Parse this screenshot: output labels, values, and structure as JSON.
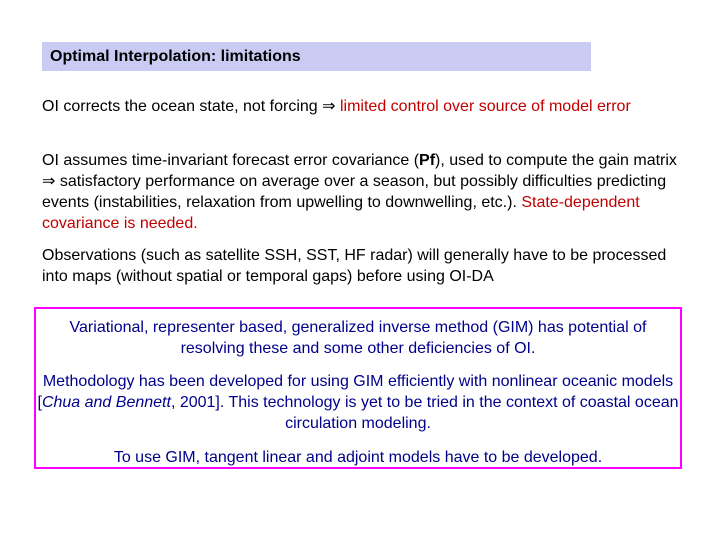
{
  "title": "Optimal Interpolation: limitations",
  "colors": {
    "title_bar_bg": "#c9cbf3",
    "highlight_red": "#c00000",
    "box_border": "#ff00ff",
    "box_text": "#00008b"
  },
  "paragraphs": [
    {
      "text_a": "OI corrects the ocean state, not forcing ",
      "arrow": "⇒",
      "text_red": " limited control over source of model error"
    },
    {
      "text_a": "OI assumes time-invariant forecast error covariance (",
      "pf": "Pf",
      "text_b": "), used to compute the gain matrix ",
      "arrow": "⇒",
      "text_c": " satisfactory performance on average over a season, but possibly difficulties predicting events (instabilities, relaxation from upwelling to downwelling, etc.).   ",
      "text_red": "State-dependent covariance is needed."
    },
    {
      "text_a": "Observations (such as satellite SSH, SST, HF radar) will generally have to be processed into maps (without spatial or temporal gaps) before using OI-DA"
    }
  ],
  "gim_box": {
    "para1": "Variational, representer based, generalized inverse method (GIM) has potential of resolving these and some other deficiencies of OI.",
    "para2_a": "Methodology has been developed for using GIM efficiently with nonlinear oceanic models [",
    "para2_cite": "Chua and Bennett",
    "para2_b": ", 2001]. This technology is yet to be tried in the context of coastal ocean circulation modeling.",
    "para3": "To use GIM, tangent linear and adjoint models have to be developed."
  }
}
